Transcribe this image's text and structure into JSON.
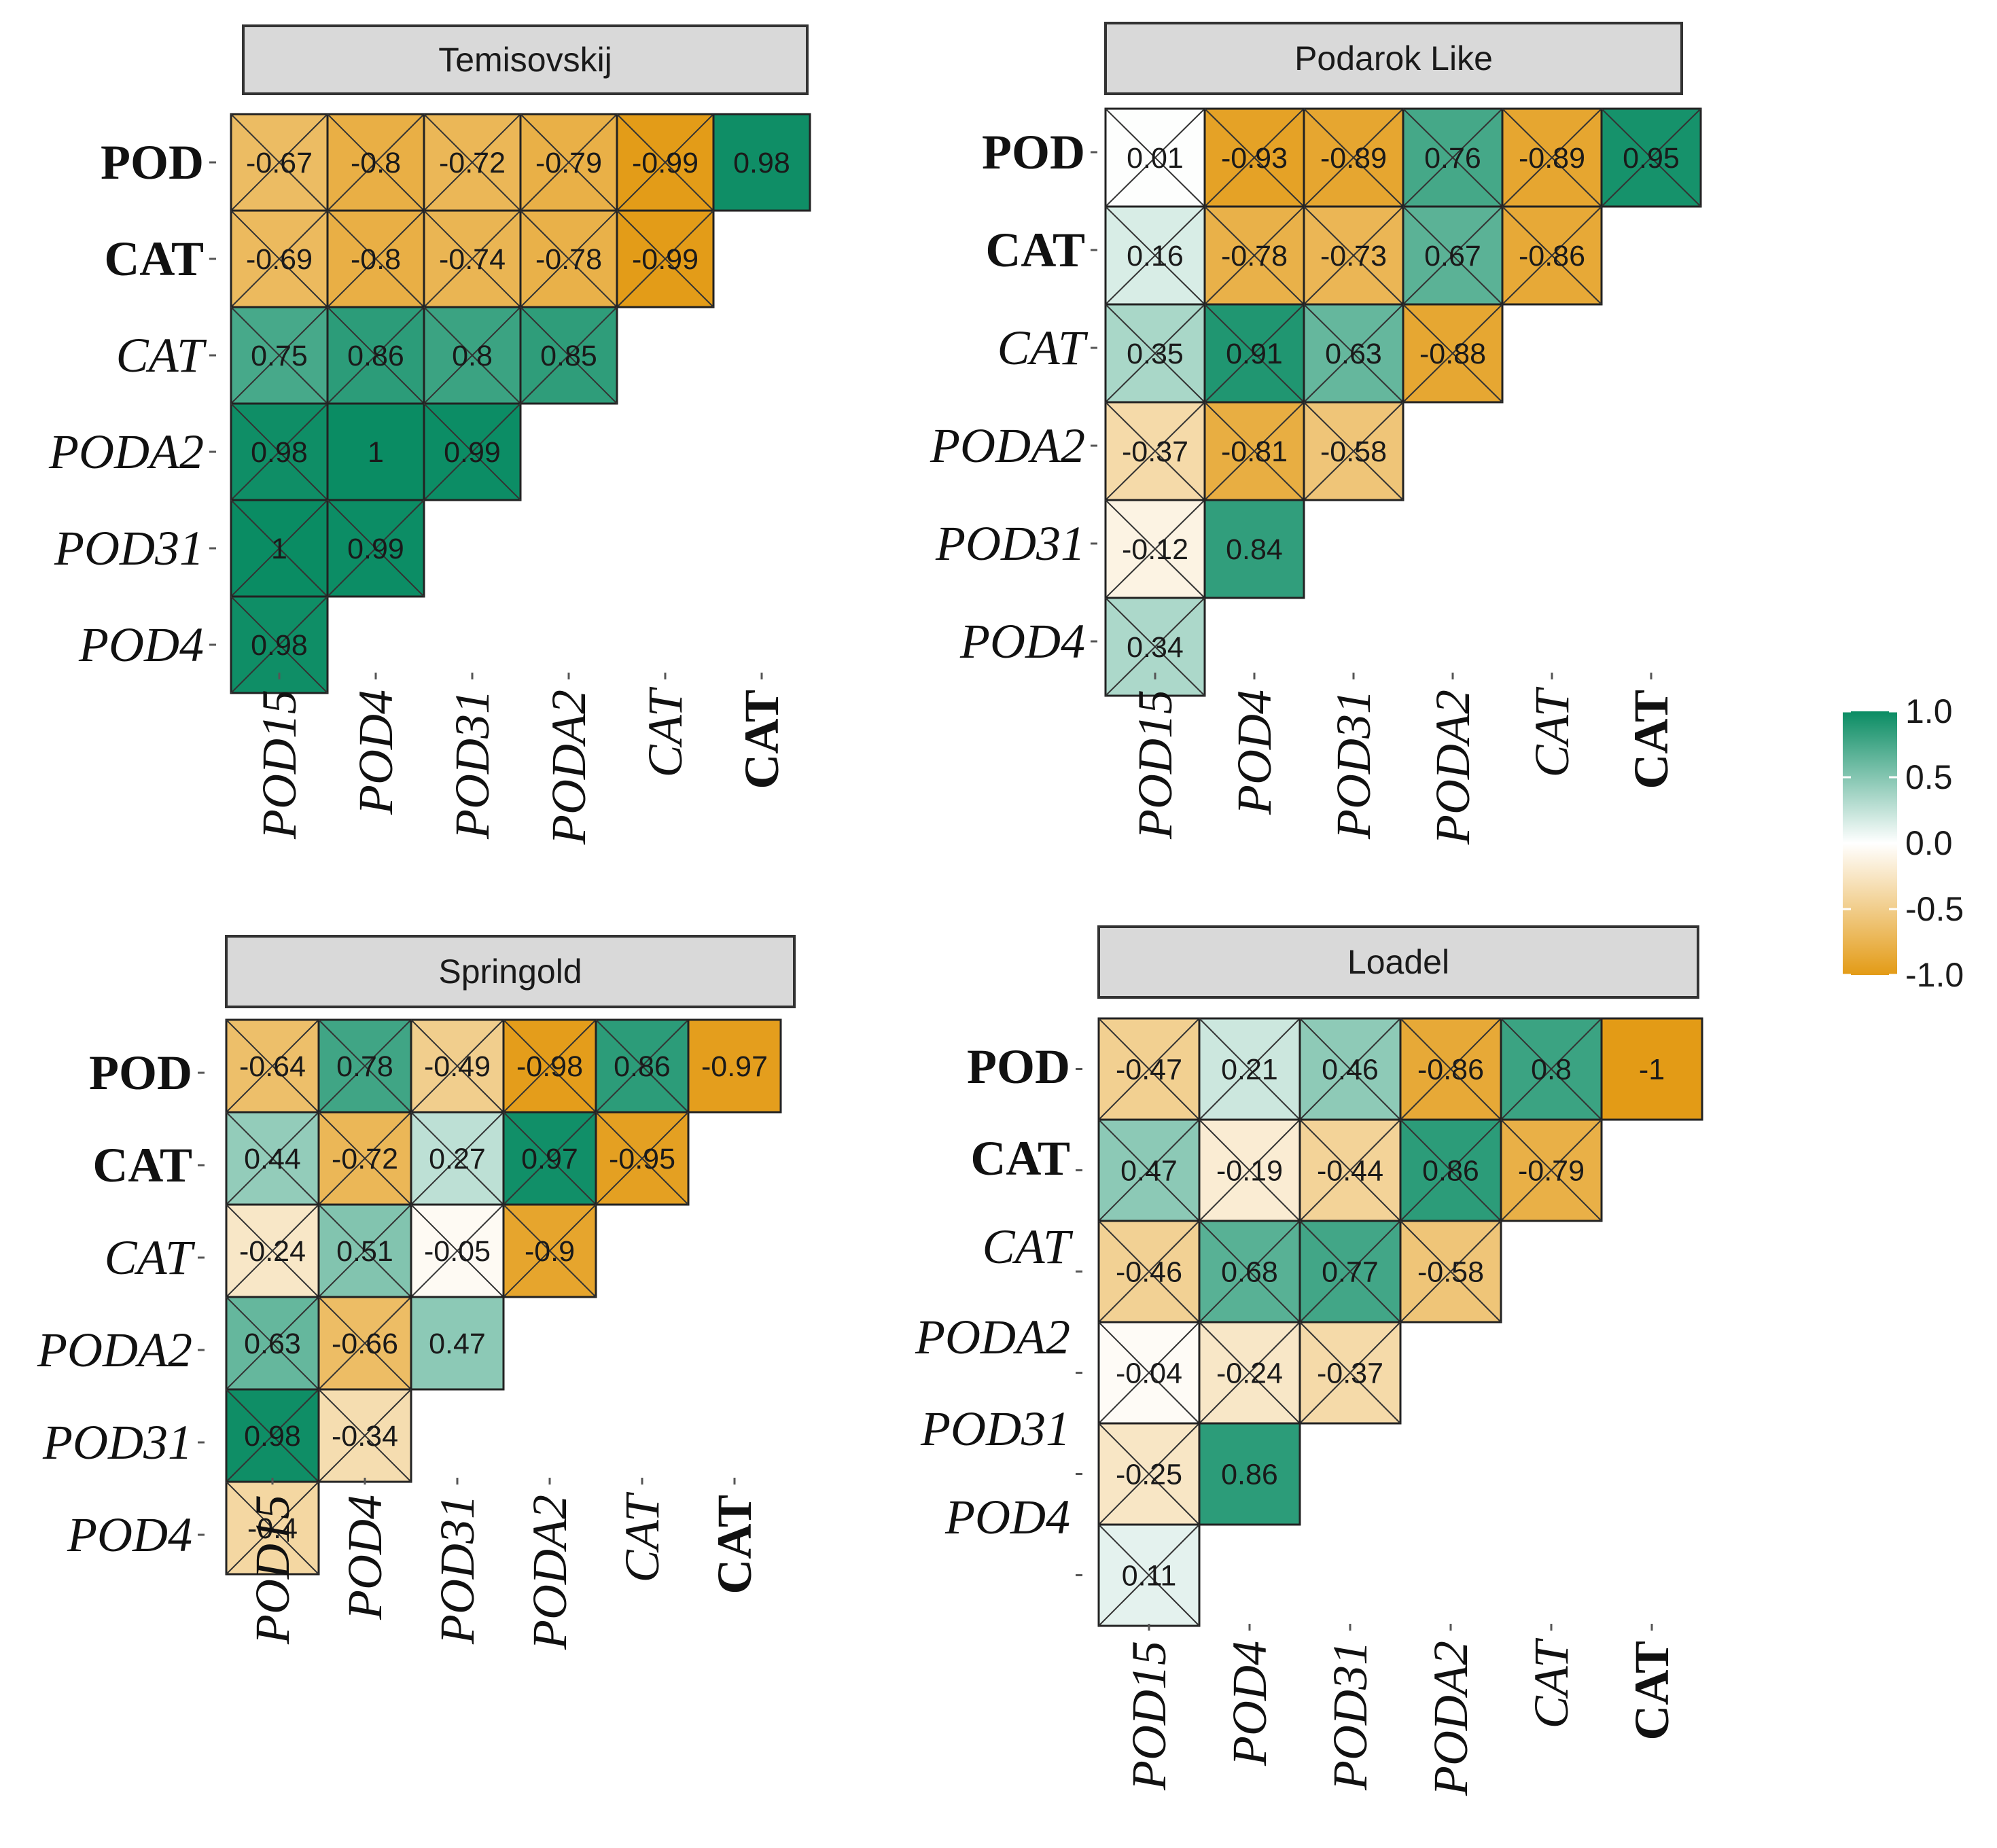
{
  "chart_data": {
    "type": "heatmap",
    "title": "",
    "rows": [
      "POD",
      "CAT",
      "CAT",
      "PODA2",
      "POD31",
      "POD4"
    ],
    "row_styles": [
      "bold",
      "bold",
      "italic",
      "italic",
      "italic",
      "italic"
    ],
    "columns": [
      "POD15",
      "POD4",
      "POD31",
      "PODA2",
      "CAT",
      "CAT"
    ],
    "column_styles": [
      "italic",
      "italic",
      "italic",
      "italic",
      "italic",
      "bold"
    ],
    "panels": [
      {
        "name": "Temisovskij",
        "values": [
          [
            -0.67,
            -0.8,
            -0.72,
            -0.79,
            -0.99,
            0.98
          ],
          [
            -0.69,
            -0.8,
            -0.74,
            -0.78,
            -0.99
          ],
          [
            0.75,
            0.86,
            0.8,
            0.85
          ],
          [
            0.98,
            1,
            0.99
          ],
          [
            1,
            0.99
          ],
          [
            0.98
          ]
        ],
        "labels": [
          [
            "-0.67",
            "-0.8",
            "-0.72",
            "-0.79",
            "-0.99",
            "0.98"
          ],
          [
            "-0.69",
            "-0.8",
            "-0.74",
            "-0.78",
            "-0.99"
          ],
          [
            "0.75",
            "0.86",
            "0.8",
            "0.85"
          ],
          [
            "0.98",
            "1",
            "0.99"
          ],
          [
            "1",
            "0.99"
          ],
          [
            "0.98"
          ]
        ],
        "crossed": [
          [
            true,
            true,
            true,
            true,
            true,
            false
          ],
          [
            true,
            true,
            true,
            true,
            true
          ],
          [
            true,
            true,
            true,
            true
          ],
          [
            true,
            false,
            true
          ],
          [
            true,
            true
          ],
          [
            true
          ]
        ]
      },
      {
        "name": "Podarok Like",
        "values": [
          [
            0.01,
            -0.93,
            -0.89,
            0.76,
            -0.89,
            0.95
          ],
          [
            0.16,
            -0.78,
            -0.73,
            0.67,
            -0.86
          ],
          [
            0.35,
            0.91,
            0.63,
            -0.88
          ],
          [
            -0.37,
            -0.81,
            -0.58
          ],
          [
            -0.12,
            0.84
          ],
          [
            0.34
          ]
        ],
        "labels": [
          [
            "0.01",
            "-0.93",
            "-0.89",
            "0.76",
            "-0.89",
            "0.95"
          ],
          [
            "0.16",
            "-0.78",
            "-0.73",
            "0.67",
            "-0.86"
          ],
          [
            "0.35",
            "0.91",
            "0.63",
            "-0.88"
          ],
          [
            "-0.37",
            "-0.81",
            "-0.58"
          ],
          [
            "-0.12",
            "0.84"
          ],
          [
            "0.34"
          ]
        ],
        "crossed": [
          [
            true,
            true,
            true,
            true,
            true,
            true
          ],
          [
            true,
            true,
            true,
            true,
            true
          ],
          [
            true,
            true,
            true,
            true
          ],
          [
            true,
            true,
            true
          ],
          [
            true,
            false
          ],
          [
            true
          ]
        ]
      },
      {
        "name": "Springold",
        "values": [
          [
            -0.64,
            0.78,
            -0.49,
            -0.98,
            0.86,
            -0.97
          ],
          [
            0.44,
            -0.72,
            0.27,
            0.97,
            -0.95
          ],
          [
            -0.24,
            0.51,
            -0.05,
            -0.9
          ],
          [
            0.63,
            -0.66,
            0.47
          ],
          [
            0.98,
            -0.34
          ],
          [
            -0.4
          ]
        ],
        "labels": [
          [
            "-0.64",
            "0.78",
            "-0.49",
            "-0.98",
            "0.86",
            "-0.97"
          ],
          [
            "0.44",
            "-0.72",
            "0.27",
            "0.97",
            "-0.95"
          ],
          [
            "-0.24",
            "0.51",
            "-0.05",
            "-0.9"
          ],
          [
            "0.63",
            "-0.66",
            "0.47"
          ],
          [
            "0.98",
            "-0.34"
          ],
          [
            "-0.4"
          ]
        ],
        "crossed": [
          [
            true,
            true,
            true,
            true,
            true,
            false
          ],
          [
            true,
            true,
            true,
            true,
            true
          ],
          [
            true,
            true,
            true,
            true
          ],
          [
            true,
            true,
            false
          ],
          [
            true,
            true
          ],
          [
            true
          ]
        ]
      },
      {
        "name": "Loadel",
        "values": [
          [
            -0.47,
            0.21,
            0.46,
            -0.86,
            0.8,
            -1
          ],
          [
            0.47,
            -0.19,
            -0.44,
            0.86,
            -0.79
          ],
          [
            -0.46,
            0.68,
            0.77,
            -0.58
          ],
          [
            -0.04,
            -0.24,
            -0.37
          ],
          [
            -0.25,
            0.86
          ],
          [
            0.11
          ]
        ],
        "labels": [
          [
            "-0.47",
            "0.21",
            "0.46",
            "-0.86",
            "0.8",
            "-1"
          ],
          [
            "0.47",
            "-0.19",
            "-0.44",
            "0.86",
            "-0.79"
          ],
          [
            "-0.46",
            "0.68",
            "0.77",
            "-0.58"
          ],
          [
            "-0.04",
            "-0.24",
            "-0.37"
          ],
          [
            "-0.25",
            "0.86"
          ],
          [
            "0.11"
          ]
        ],
        "crossed": [
          [
            true,
            true,
            true,
            true,
            true,
            false
          ],
          [
            true,
            true,
            true,
            true,
            true
          ],
          [
            true,
            true,
            true,
            true
          ],
          [
            true,
            true,
            true
          ],
          [
            true,
            false
          ],
          [
            true
          ]
        ]
      }
    ],
    "colorbar": {
      "range": [
        -1.0,
        1.0
      ],
      "tick_labels": [
        "1.0",
        "0.5",
        "0.0",
        "-0.5",
        "-1.0"
      ],
      "tick_values": [
        1.0,
        0.5,
        0.0,
        -0.5,
        -1.0
      ],
      "low_color": "#e39b16",
      "mid_color": "#ffffff",
      "high_color": "#0a8c63"
    },
    "legend_position": "right",
    "grid": false
  }
}
